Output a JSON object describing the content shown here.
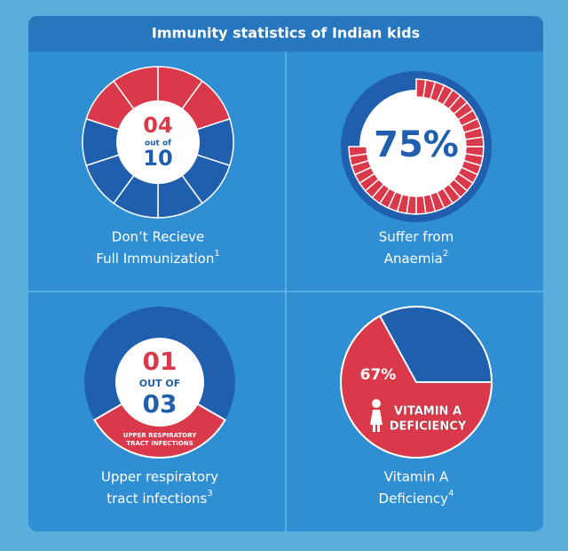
{
  "title": "Immunity statistics of Indian kids",
  "panels": [
    {
      "value": {
        "value": 4,
        "label": "04"
      },
      "connector": "out of",
      "total": 10,
      "caption": [
        "Don’t Recieve",
        "Full Immunization"
      ],
      "note": "1"
    },
    {
      "value": {
        "value": 75,
        "label": "75%"
      },
      "caption": [
        "Suffer from",
        "Anaemia"
      ],
      "note": "2"
    },
    {
      "value": {
        "value": 1,
        "label": "01"
      },
      "connector": "OUT OF",
      "total": {
        "value": 3,
        "label": "03"
      },
      "inner_label": [
        "UPPER RESPIRATORY",
        "TRACT INFECTIONS"
      ],
      "caption": [
        "Upper respiratory",
        "tract infections"
      ],
      "note": "3"
    },
    {
      "value": {
        "value": 67,
        "label": "67%"
      },
      "inner_label": [
        "VITAMIN A",
        "DEFICIENCY"
      ],
      "caption": [
        "Vitamin A",
        "Deficiency"
      ],
      "note": "4"
    }
  ]
}
